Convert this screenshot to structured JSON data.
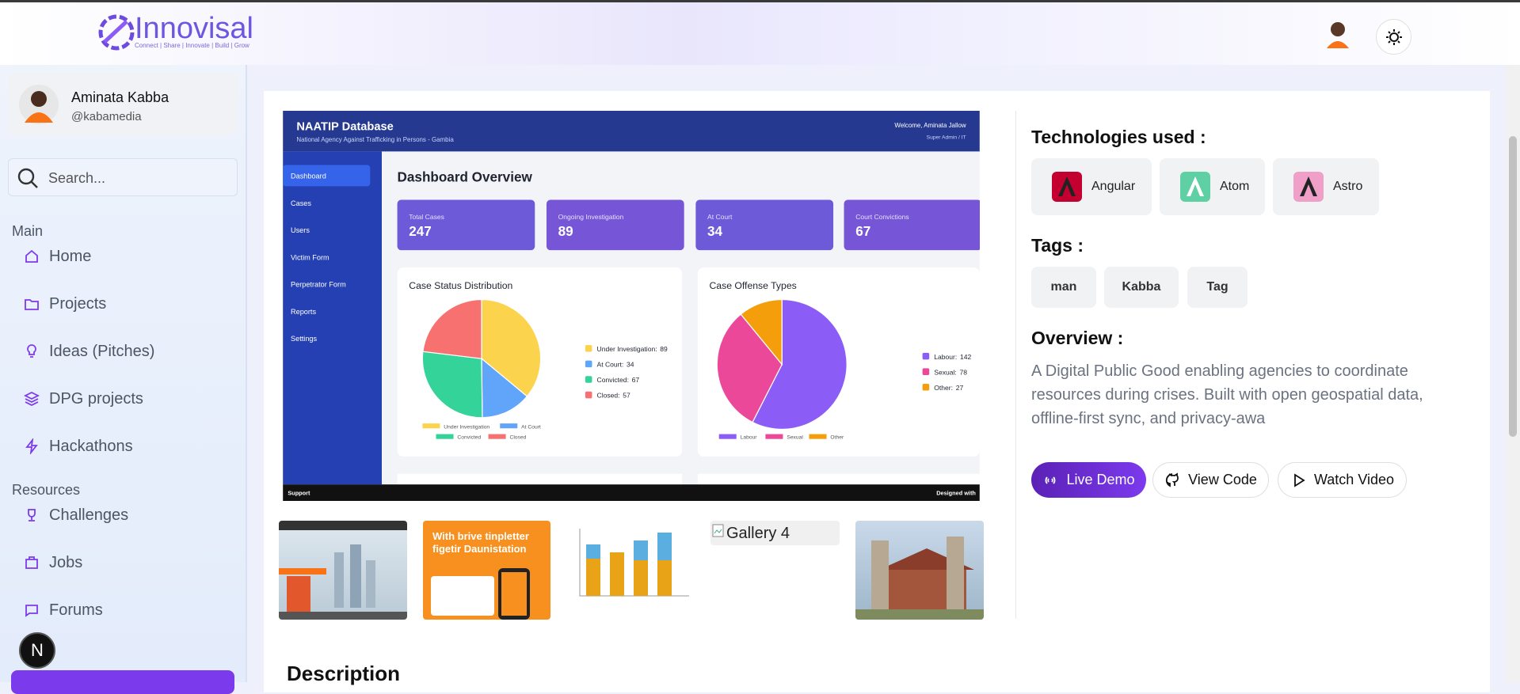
{
  "header": {
    "logo": "Innovisal",
    "tagline": "Connect | Share | Innovate | Build | Grow"
  },
  "profile": {
    "name": "Aminata Kabba",
    "handle": "@kabamedia"
  },
  "search": {
    "placeholder": "Search..."
  },
  "nav": {
    "sections": [
      {
        "title": "Main",
        "items": [
          "Home",
          "Projects",
          "Ideas (Pitches)",
          "DPG projects",
          "Hackathons"
        ]
      },
      {
        "title": "Resources",
        "items": [
          "Challenges",
          "Jobs",
          "Forums"
        ]
      }
    ]
  },
  "badge": "N",
  "preview": {
    "title": "NAATIP Database",
    "subtitle": "National Agency Against Trafficking in Persons - Gambia",
    "welcome": "Welcome, Aminata Jallow",
    "role": "Super Admin / IT",
    "menu": [
      "Dashboard",
      "Cases",
      "Users",
      "Victim Form",
      "Perpetrator Form",
      "Reports",
      "Settings"
    ],
    "heading": "Dashboard Overview",
    "stats": [
      {
        "label": "Total Cases",
        "value": 247
      },
      {
        "label": "Ongoing Investigation",
        "value": 89
      },
      {
        "label": "At Court",
        "value": 34
      },
      {
        "label": "Court Convictions",
        "value": 67
      }
    ],
    "charts": [
      {
        "title": "Case Status Distribution",
        "slices": [
          {
            "label": "Under Investigation:",
            "value": 89,
            "color": "#fcd34d"
          },
          {
            "label": "At Court:",
            "value": 34,
            "color": "#60a5fa"
          },
          {
            "label": "Convicted:",
            "value": 67,
            "color": "#34d399"
          },
          {
            "label": "Closed:",
            "value": 57,
            "color": "#f87171"
          }
        ],
        "legend": [
          "Under Investigation",
          "At Court",
          "Convicted",
          "Closed"
        ]
      },
      {
        "title": "Case Offense Types",
        "slices": [
          {
            "label": "Labour:",
            "value": 142,
            "color": "#8b5cf6"
          },
          {
            "label": "Sexual:",
            "value": 78,
            "color": "#ec4899"
          },
          {
            "label": "Other:",
            "value": 27,
            "color": "#f59e0b"
          }
        ],
        "legend": [
          "Labour",
          "Sexual",
          "Other"
        ]
      }
    ],
    "footer_left": "Support",
    "footer_right": "Designed with"
  },
  "gallery": {
    "promo": "With brive tinpletter figetir Daunistation",
    "broken_alt": "Gallery 4"
  },
  "tech": {
    "title": "Technologies used :",
    "items": [
      "Angular",
      "Atom",
      "Astro"
    ]
  },
  "tags": {
    "title": "Tags :",
    "items": [
      "man",
      "Kabba",
      "Tag"
    ]
  },
  "overview": {
    "title": "Overview :",
    "text": "A Digital Public Good enabling agencies to coordinate resources during crises. Built with open geospatial data, offline-first sync, and privacy-awa"
  },
  "actions": [
    "Live Demo",
    "View Code",
    "Watch Video"
  ],
  "description": {
    "title": "Description"
  }
}
